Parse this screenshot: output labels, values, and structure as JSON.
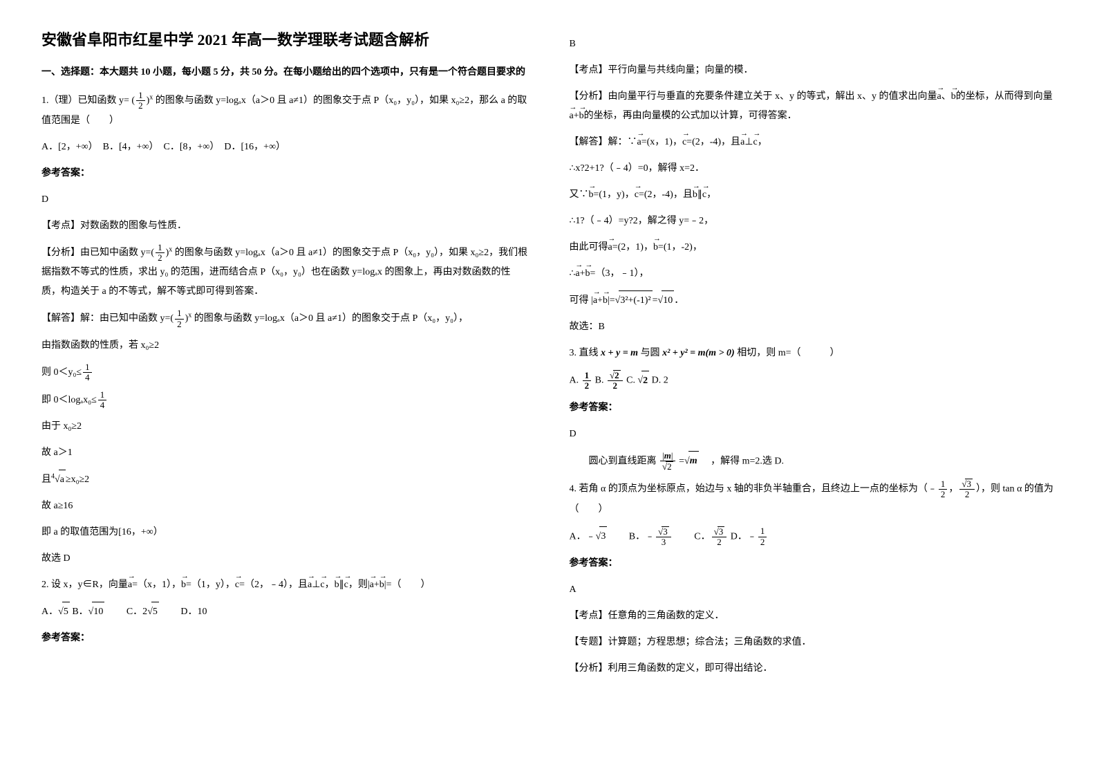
{
  "title": "安徽省阜阳市红星中学 2021 年高一数学理联考试题含解析",
  "section1": {
    "heading": "一、选择题：本大题共 10 小题，每小题 5 分，共 50 分。在每小题给出的四个选项中，只有是一个符合题目要求的"
  },
  "q1": {
    "stem_pre": "1.（理）已知函数 y=",
    "stem_post": " 的图象与函数 y=logₐx（a＞0 且 a≠1）的图象交于点 P（x₀，y₀），如果 x₀≥2，那么 a 的取值范围是（　　）",
    "opts": "A．[2，+∞）　B．[4，+∞）　C．[8，+∞）　D．[16，+∞）",
    "ans_label": "参考答案：",
    "ans": "D",
    "tag1": "【考点】对数函数的图象与性质．",
    "tag2_pre": "【分析】由已知中函数",
    "tag2_post": "的图象与函数 y=logₐx（a＞0 且 a≠1）的图象交于点 P（x₀，y₀），如果 x₀≥2，我们根据指数不等式的性质，求出 y₀ 的范围，进而结合点 P（x₀，y₀）也在函数 y=logₐx 的图象上，再由对数函数的性质，构造关于 a 的不等式，解不等式即可得到答案．",
    "sol_pre": "【解答】解：由已知中函数",
    "sol_post": "的图象与函数 y=logₐx（a＞0 且 a≠1）的图象交于点 P（x₀，y₀），",
    "l1": "由指数函数的性质，若 x₀≥2",
    "l2_pre": "则 0＜y₀≤",
    "l3_pre": "即 0＜logₐx₀≤",
    "l4": "由于 x₀≥2",
    "l5": "故 a＞1",
    "l6_pre": "且",
    "l6_post": "≥x₀≥2",
    "l7": "故 a≥16",
    "l8": "即 a 的取值范围为[16，+∞）",
    "l9": "故选 D"
  },
  "q2": {
    "stem": "2. 设 x，y∈R，向量",
    "stem_a": "=（x，1），",
    "stem_b": "=（1，y），",
    "stem_c": "=（2，﹣4），且",
    "stem_mid": "⊥",
    "stem_mid2": "，",
    "stem_mid3": "∥",
    "stem_end": "，则|",
    "stem_end2": "+",
    "stem_end3": "|=（　　）",
    "optA_pre": "A．",
    "optA_val": "5",
    "optB_pre": " B．",
    "optB_val": "10",
    "optC_pre": "　　C．2",
    "optC_val": "5",
    "optD": "　　D．10",
    "ans_label": "参考答案：",
    "ans": "B",
    "tag1": "【考点】平行向量与共线向量；向量的模．",
    "tag2": "【分析】由向量平行与垂直的充要条件建立关于 x、y 的等式，解出 x、y 的值求出向量",
    "tag2_end": "的坐标，从而得到向量",
    "tag2_end2": "的坐标，再由向量模的公式加以计算，可得答案．",
    "sol0": "【解答】解：∵",
    "sol0a": "=(x，1)，",
    "sol0b": "=(2，-4)，且",
    "sol0c": "⊥",
    "sol0d": "，",
    "sol1": "∴x?2+1?（﹣4）=0，解得 x=2．",
    "sol2_pre": "又∵",
    "sol2_b": "=(1，y)，",
    "sol2_c": "=(2，-4)，且",
    "sol2_mid": "∥",
    "sol2_end": "，",
    "sol3": "∴1?（﹣4）=y?2，解之得 y=﹣2，",
    "sol4_pre": "由此可得",
    "sol4_a": "=(2，1)，",
    "sol4_b": "=(1，-2)，",
    "sol5_pre": "∴",
    "sol5_post": "=（3，﹣1），",
    "sol6_pre": "可得 |",
    "sol6_mid": "|=",
    "sol6_sq": "3²+(-1)²",
    "sol6_eq": "=",
    "sol6_val": "10",
    "sol6_end": "．",
    "sol7": "故选：B"
  },
  "q3": {
    "stem_pre": "3. 直线 ",
    "stem_eq1": "x + y = m",
    "stem_mid": " 与圆 ",
    "stem_eq2": "x² + y² = m(m > 0)",
    "stem_post": " 相切，则 m=（　　　）",
    "opts_A": "A. ",
    "opts_B": " B. ",
    "opts_C": " C. ",
    "opts_C_val": "2",
    "opts_D": " D. 2",
    "ans_label": "参考答案：",
    "ans": "D",
    "sol_pre": "　　圆心到直线距离",
    "sol_eq": "=",
    "sol_m": "m",
    "sol_post": "　，解得 m=2.选 D."
  },
  "q4": {
    "stem_pre": "4. 若角 α 的顶点为坐标原点，始边与 x 轴的非负半轴重合，且终边上一点的坐标为（﹣",
    "stem_mid": "，",
    "stem_post": "），则 tan α 的值为（　　）",
    "optA_pre": "A．﹣",
    "optA_val": "3",
    "optB_pre": "　　B．﹣",
    "optC_pre": "　　C．",
    "optD_pre": " D．﹣",
    "ans_label": "参考答案：",
    "ans": "A",
    "tag1": "【考点】任意角的三角函数的定义．",
    "tag2": "【专题】计算题；方程思想；综合法；三角函数的求值．",
    "tag3": "【分析】利用三角函数的定义，即可得出结论．"
  }
}
